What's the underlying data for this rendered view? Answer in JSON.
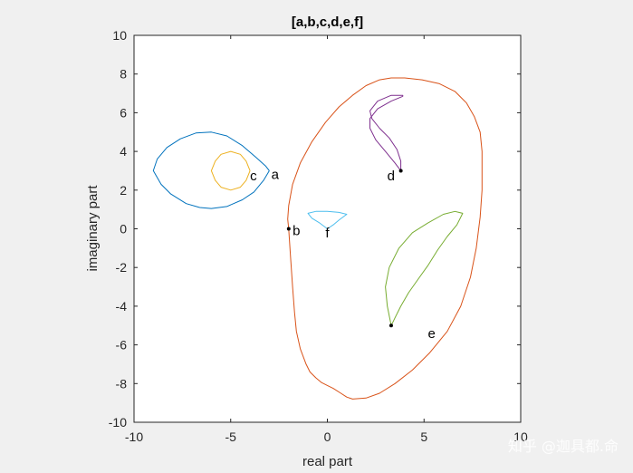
{
  "chart_data": {
    "type": "line",
    "title": "[a,b,c,d,e,f]",
    "xlabel": "real part",
    "ylabel": "imaginary part",
    "xlim": [
      -10,
      10
    ],
    "ylim": [
      -10,
      10
    ],
    "xticks": [
      -10,
      -5,
      0,
      5,
      10
    ],
    "yticks": [
      -10,
      -8,
      -6,
      -4,
      -2,
      0,
      2,
      4,
      6,
      8,
      10
    ],
    "grid": false,
    "colors": {
      "a": "#0072bd",
      "b": "#d95319",
      "c": "#edb120",
      "d": "#7e2f8e",
      "e": "#77ac30",
      "f": "#4dbeee"
    },
    "series": [
      {
        "name": "a",
        "color_key": "a",
        "x": [
          -3.0,
          -3.3,
          -3.8,
          -4.4,
          -5.2,
          -6.0,
          -6.6,
          -7.3,
          -8.1,
          -8.6,
          -9.0,
          -8.8,
          -8.3,
          -7.6,
          -6.8,
          -6.0,
          -5.2,
          -4.4,
          -3.7,
          -3.2,
          -3.0
        ],
        "y": [
          3.0,
          2.5,
          1.9,
          1.5,
          1.15,
          1.05,
          1.1,
          1.3,
          1.8,
          2.3,
          3.0,
          3.6,
          4.2,
          4.65,
          4.95,
          5.0,
          4.8,
          4.3,
          3.7,
          3.25,
          3.0
        ]
      },
      {
        "name": "b",
        "color_key": "b",
        "x": [
          -2.0,
          -1.9,
          -1.8,
          -1.7,
          -1.6,
          -1.4,
          -1.1,
          -0.9,
          -0.6,
          -0.3,
          0.0,
          0.3,
          0.7,
          1.0,
          1.3,
          2.0,
          2.7,
          3.5,
          4.4,
          5.3,
          6.2,
          6.9,
          7.4,
          7.7,
          7.9,
          8.0,
          8.0,
          7.9,
          7.6,
          7.2,
          6.6,
          5.8,
          4.9,
          4.0,
          3.3,
          2.7,
          2.0,
          1.3,
          0.6,
          -0.1,
          -0.8,
          -1.4,
          -1.8,
          -2.0,
          -2.05,
          -2.0
        ],
        "y": [
          0.0,
          -1.5,
          -3.0,
          -4.3,
          -5.3,
          -6.2,
          -7.0,
          -7.4,
          -7.7,
          -7.95,
          -8.1,
          -8.25,
          -8.5,
          -8.7,
          -8.8,
          -8.75,
          -8.5,
          -8.0,
          -7.3,
          -6.4,
          -5.3,
          -4.0,
          -2.5,
          -1.0,
          0.6,
          2.0,
          4.0,
          5.0,
          5.8,
          6.5,
          7.1,
          7.5,
          7.7,
          7.8,
          7.8,
          7.7,
          7.4,
          6.9,
          6.3,
          5.5,
          4.5,
          3.4,
          2.3,
          1.2,
          0.5,
          0.0
        ]
      },
      {
        "name": "c",
        "color_key": "c",
        "x": [
          -4.0,
          -4.2,
          -4.5,
          -5.0,
          -5.5,
          -5.8,
          -6.0,
          -5.8,
          -5.5,
          -5.0,
          -4.5,
          -4.2,
          -4.0
        ],
        "y": [
          3.0,
          3.5,
          3.85,
          4.0,
          3.85,
          3.5,
          3.0,
          2.5,
          2.15,
          2.0,
          2.15,
          2.5,
          3.0
        ]
      },
      {
        "name": "d",
        "color_key": "d",
        "x": [
          3.8,
          3.8,
          3.6,
          3.2,
          2.7,
          2.3,
          2.2,
          2.6,
          3.3,
          3.9,
          3.9,
          3.3,
          2.6,
          2.2,
          2.2,
          2.5,
          3.0,
          3.5,
          3.8
        ],
        "y": [
          3.0,
          3.5,
          4.1,
          4.7,
          5.2,
          5.7,
          6.1,
          6.6,
          6.9,
          6.9,
          6.85,
          6.6,
          6.2,
          5.7,
          5.2,
          4.6,
          4.0,
          3.4,
          3.0
        ]
      },
      {
        "name": "e",
        "color_key": "e",
        "x": [
          3.3,
          3.1,
          3.0,
          3.2,
          3.7,
          4.4,
          5.2,
          6.0,
          6.6,
          7.0,
          6.7,
          6.2,
          5.7,
          5.2,
          4.7,
          4.2,
          3.8,
          3.5,
          3.3
        ],
        "y": [
          -5.0,
          -4.0,
          -3.0,
          -2.0,
          -1.0,
          -0.2,
          0.3,
          0.75,
          0.9,
          0.8,
          0.2,
          -0.4,
          -1.1,
          -1.9,
          -2.6,
          -3.3,
          -4.0,
          -4.6,
          -5.0
        ],
        "marker_end": true
      },
      {
        "name": "f",
        "color_key": "f",
        "x": [
          0.0,
          -0.4,
          -0.8,
          -1.0,
          -0.6,
          0.0,
          0.6,
          1.0,
          0.6,
          0.3,
          0.0
        ],
        "y": [
          0.0,
          0.3,
          0.55,
          0.8,
          0.9,
          0.9,
          0.85,
          0.75,
          0.45,
          0.2,
          0.0
        ]
      }
    ],
    "markers": [
      {
        "x": -2.0,
        "y": 0.0
      },
      {
        "x": 3.8,
        "y": 3.0
      },
      {
        "x": 3.3,
        "y": -5.0
      }
    ],
    "point_labels": [
      {
        "text": "a",
        "x": -2.9,
        "y": 2.8
      },
      {
        "text": "b",
        "x": -1.8,
        "y": -0.1
      },
      {
        "text": "c",
        "x": -4.0,
        "y": 2.75
      },
      {
        "text": "d",
        "x": 3.1,
        "y": 2.75
      },
      {
        "text": "e",
        "x": 5.2,
        "y": -5.4
      },
      {
        "text": "f",
        "x": -0.1,
        "y": -0.2
      }
    ]
  },
  "watermark": "知乎 @迦具都.命"
}
